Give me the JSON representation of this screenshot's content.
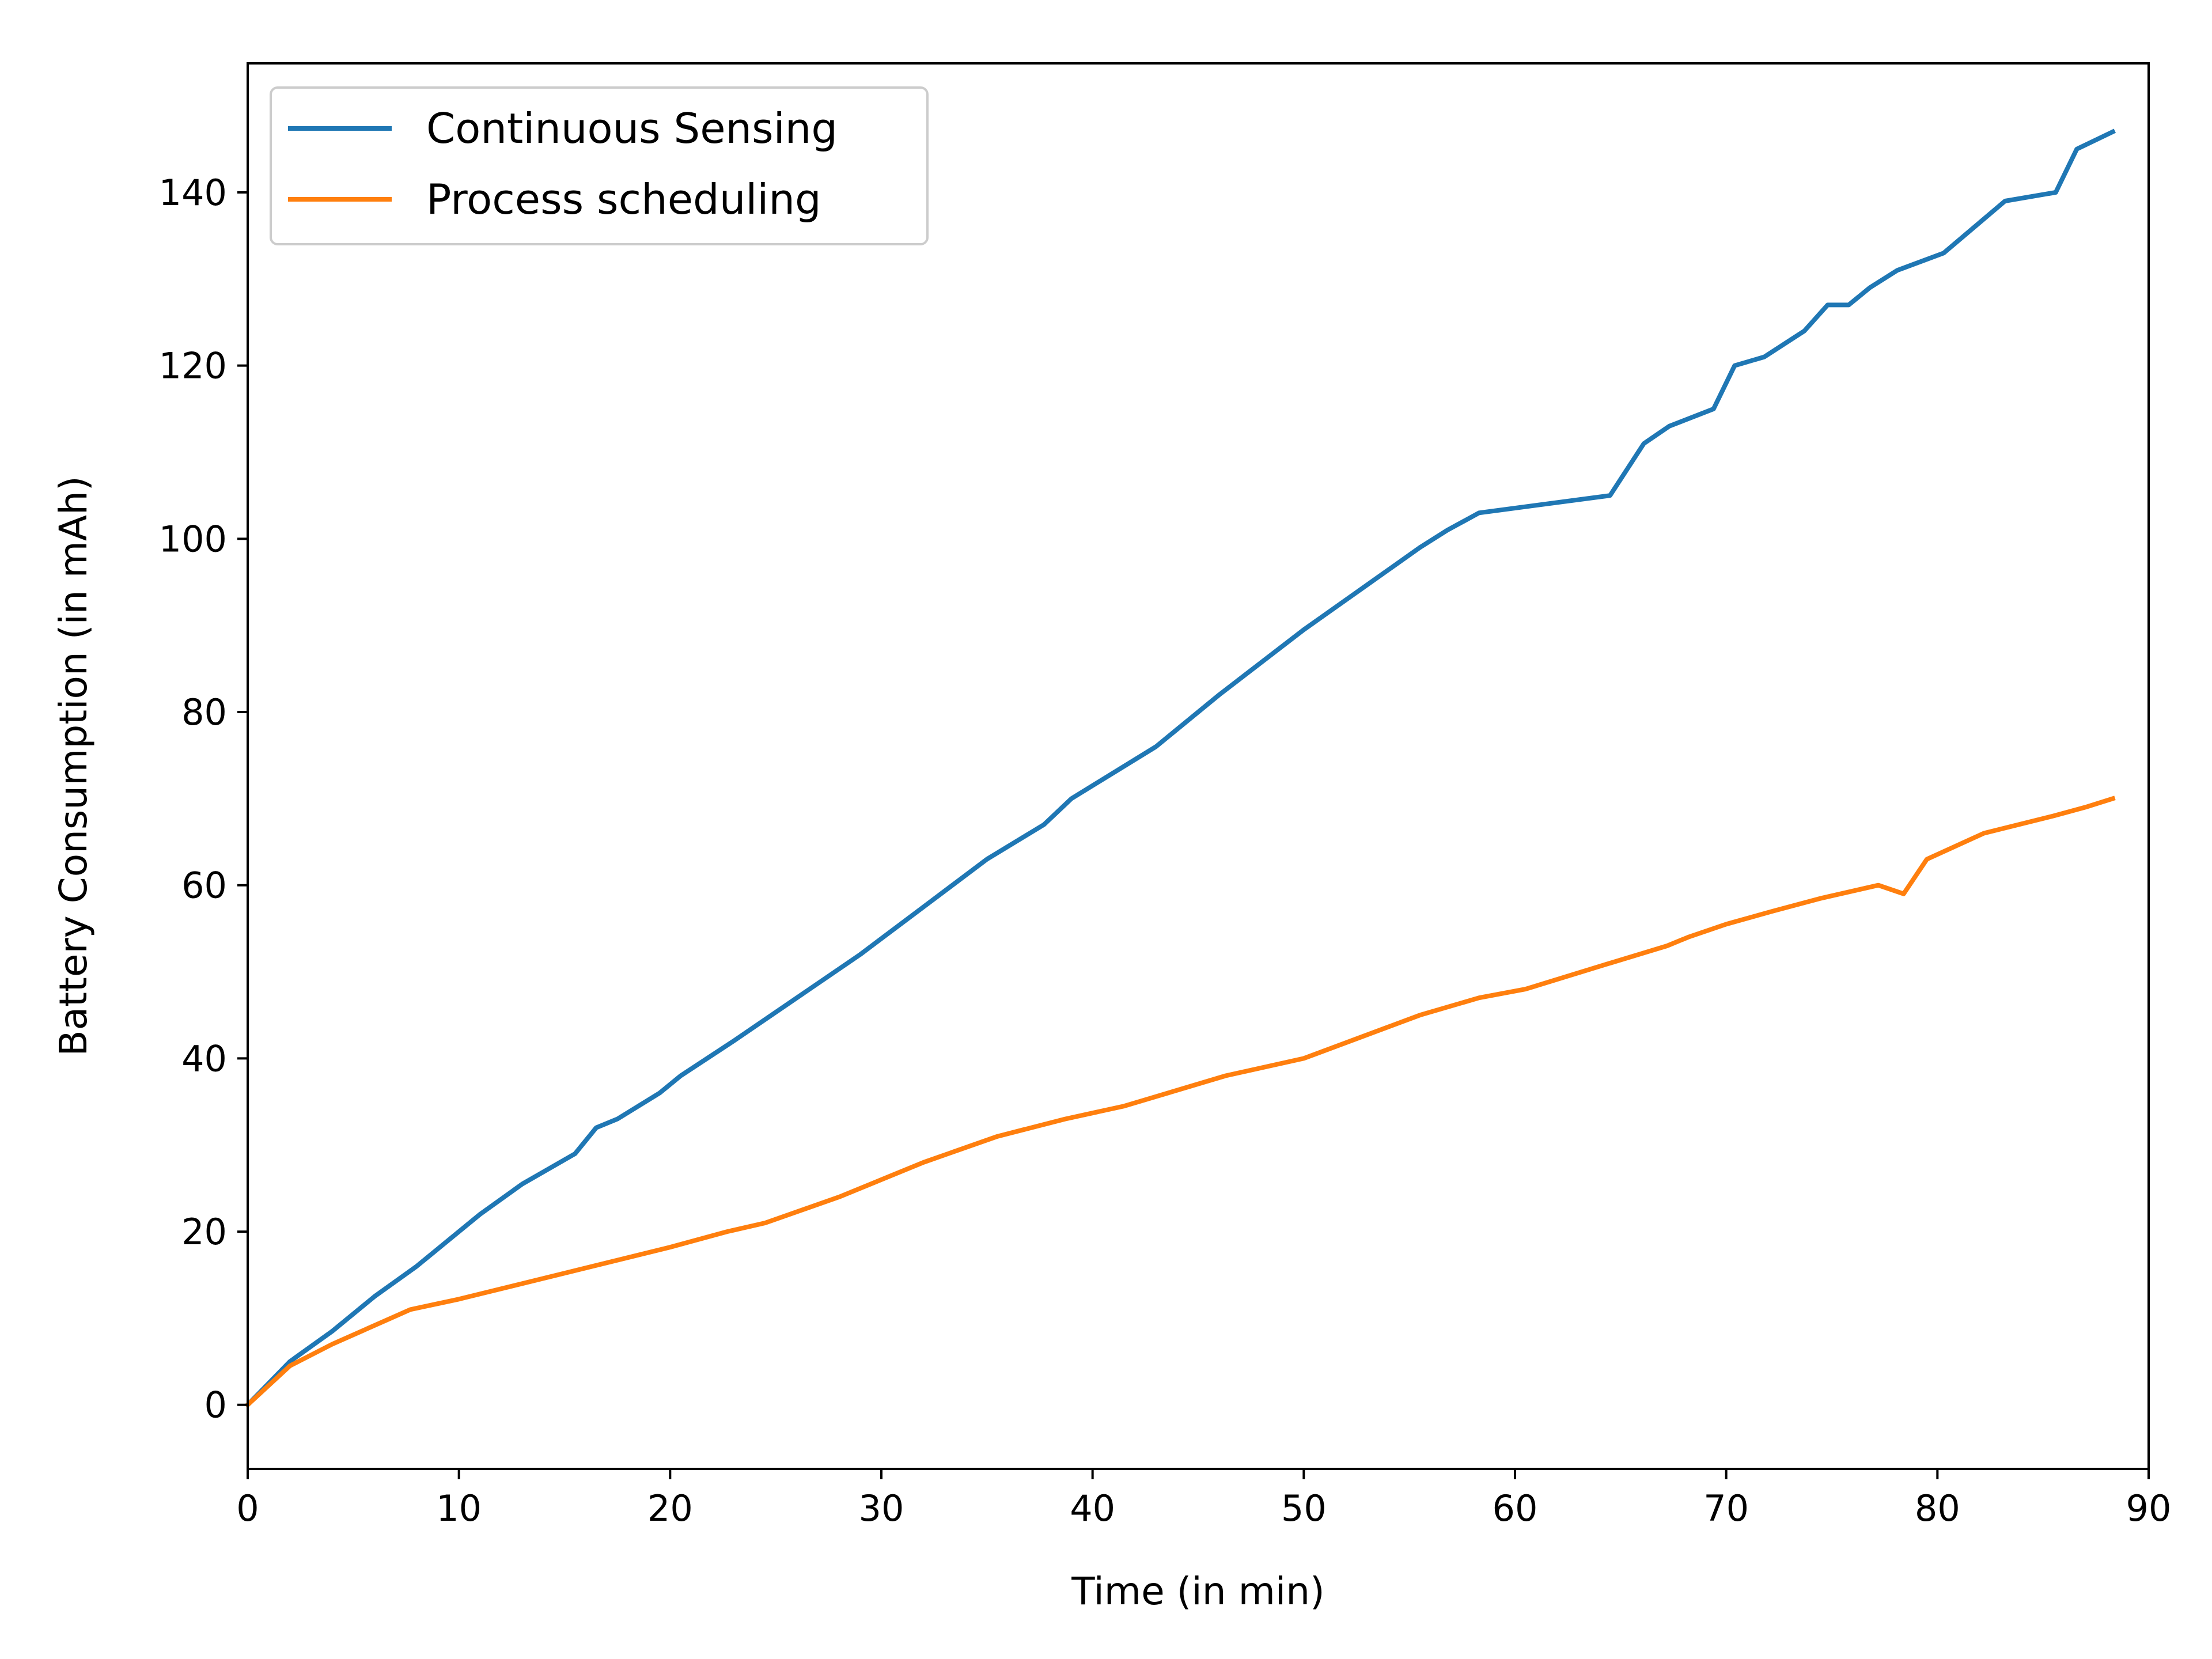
{
  "chart_data": {
    "type": "line",
    "title": "",
    "xlabel": "Time (in min)",
    "ylabel": "Battery Consumption (in mAh)",
    "xlim": [
      0,
      90
    ],
    "ylim": [
      -7.4,
      154.9
    ],
    "xticks": [
      0,
      10,
      20,
      30,
      40,
      50,
      60,
      70,
      80,
      90
    ],
    "yticks": [
      0,
      20,
      40,
      60,
      80,
      100,
      120,
      140
    ],
    "grid": false,
    "legend_position": "top-left",
    "series": [
      {
        "name": "Continuous Sensing",
        "color": "#1f77b4",
        "x": [
          0,
          2,
          4,
          6,
          8,
          11,
          13,
          15.5,
          16.5,
          17.5,
          19.5,
          20.5,
          23,
          26,
          29,
          32,
          35,
          37.7,
          39,
          41,
          43,
          46,
          50,
          55.5,
          56.8,
          58.3,
          64.5,
          66.1,
          67.3,
          69.4,
          70.4,
          71.8,
          73.7,
          74.8,
          75.8,
          76.8,
          78.1,
          80.3,
          83.2,
          85.6,
          86.6,
          88.3
        ],
        "y": [
          0,
          5,
          8.5,
          12.5,
          16,
          22,
          25.5,
          29,
          32,
          33,
          36,
          38,
          42,
          47,
          52,
          57.5,
          63,
          67,
          70,
          73,
          76,
          82,
          89.5,
          99,
          101,
          103,
          105,
          111,
          113,
          115,
          120,
          121,
          124,
          127,
          127,
          129,
          131,
          133,
          139,
          140,
          145,
          147
        ]
      },
      {
        "name": "Process scheduling",
        "color": "#ff7f0e",
        "x": [
          0,
          2,
          4,
          7.7,
          10,
          15,
          20,
          22.7,
          24.5,
          28,
          32,
          35.5,
          38.7,
          41.5,
          46.3,
          50,
          55.5,
          58.3,
          60.5,
          64.5,
          67.2,
          68.2,
          70,
          72.2,
          74.5,
          77.2,
          78.4,
          79.5,
          82.2,
          85.5,
          87,
          88.3
        ],
        "y": [
          0,
          4.5,
          7,
          11,
          12.2,
          15.2,
          18.2,
          20,
          21,
          24,
          28,
          31,
          33,
          34.5,
          38,
          40,
          45,
          47,
          48,
          51,
          53,
          54,
          55.5,
          57,
          58.5,
          60,
          59,
          63,
          66,
          68,
          69,
          70
        ]
      }
    ]
  }
}
